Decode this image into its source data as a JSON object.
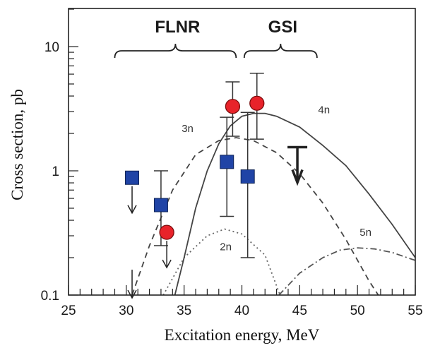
{
  "chart_data": {
    "type": "scatter",
    "title": "",
    "xlabel": "Excitation energy, MeV",
    "ylabel": "Cross section, pb",
    "xlim": [
      25,
      55
    ],
    "ylim": [
      0.1,
      20
    ],
    "y_scale": "log",
    "grid": false,
    "x_ticks": [
      "25",
      "30",
      "35",
      "40",
      "45",
      "50",
      "55"
    ],
    "y_ticks": [
      {
        "value": 0.1,
        "label": "0.1"
      },
      {
        "value": 1,
        "label": "1"
      },
      {
        "value": 10,
        "label": "10"
      }
    ],
    "regions": [
      {
        "label": "FLNR",
        "x_range": [
          29,
          39.5
        ]
      },
      {
        "label": "GSI",
        "x_range": [
          40.2,
          46.5
        ]
      }
    ],
    "series": [
      {
        "marker": "square",
        "color": "#2044a6",
        "points": [
          {
            "x": 30.5,
            "y": 0.88,
            "upper_limit": true
          },
          {
            "x": 33.0,
            "y": 0.53,
            "err_low": 0.25,
            "err_high": 1.0
          },
          {
            "x": 38.7,
            "y": 1.18,
            "err_low": 0.43,
            "err_high": 2.7
          },
          {
            "x": 40.5,
            "y": 0.9,
            "err_low": 0.2,
            "err_high": 2.95
          }
        ]
      },
      {
        "marker": "circle",
        "color": "#e8232a",
        "points": [
          {
            "x": 33.5,
            "y": 0.32,
            "upper_limit": true
          },
          {
            "x": 39.2,
            "y": 3.3,
            "err_low": 1.9,
            "err_high": 5.2
          },
          {
            "x": 41.3,
            "y": 3.5,
            "err_low": 1.8,
            "err_high": 6.1
          }
        ]
      }
    ],
    "limit_arrows": [
      {
        "x": 30.5,
        "y": 0.16
      },
      {
        "x": 44.8,
        "y": 1.55,
        "style": "bold"
      }
    ],
    "curves": [
      {
        "label": "2n",
        "style": "dotted",
        "points": [
          [
            33.2,
            0.1
          ],
          [
            35,
            0.2
          ],
          [
            37,
            0.3
          ],
          [
            38.5,
            0.34
          ],
          [
            40,
            0.31
          ],
          [
            42,
            0.21
          ],
          [
            43.3,
            0.1
          ]
        ]
      },
      {
        "label": "3n",
        "style": "dashed",
        "points": [
          [
            30.5,
            0.1
          ],
          [
            32,
            0.25
          ],
          [
            34,
            0.7
          ],
          [
            36,
            1.35
          ],
          [
            38,
            1.75
          ],
          [
            39.5,
            1.85
          ],
          [
            41,
            1.75
          ],
          [
            43,
            1.4
          ],
          [
            45,
            0.95
          ],
          [
            47,
            0.55
          ],
          [
            49,
            0.28
          ],
          [
            51,
            0.13
          ],
          [
            51.8,
            0.1
          ]
        ]
      },
      {
        "label": "4n",
        "style": "solid",
        "points": [
          [
            34.2,
            0.1
          ],
          [
            35,
            0.2
          ],
          [
            36,
            0.5
          ],
          [
            37,
            1.0
          ],
          [
            38,
            1.65
          ],
          [
            39,
            2.3
          ],
          [
            40,
            2.75
          ],
          [
            41,
            2.9
          ],
          [
            42,
            2.9
          ],
          [
            43,
            2.75
          ],
          [
            45,
            2.25
          ],
          [
            47,
            1.6
          ],
          [
            49,
            1.1
          ],
          [
            51,
            0.65
          ],
          [
            53,
            0.37
          ],
          [
            55,
            0.2
          ]
        ]
      },
      {
        "label": "5n",
        "style": "dashdot",
        "points": [
          [
            43.2,
            0.1
          ],
          [
            45,
            0.15
          ],
          [
            47,
            0.2
          ],
          [
            48.5,
            0.23
          ],
          [
            50,
            0.24
          ],
          [
            51.5,
            0.235
          ],
          [
            53,
            0.22
          ],
          [
            55,
            0.19
          ]
        ]
      }
    ],
    "curve_labels": [
      {
        "text": "2n",
        "x": 38.6,
        "y": 0.23
      },
      {
        "text": "3n",
        "x": 35.3,
        "y": 2.05
      },
      {
        "text": "4n",
        "x": 47.1,
        "y": 2.9
      },
      {
        "text": "5n",
        "x": 50.7,
        "y": 0.3
      }
    ]
  }
}
